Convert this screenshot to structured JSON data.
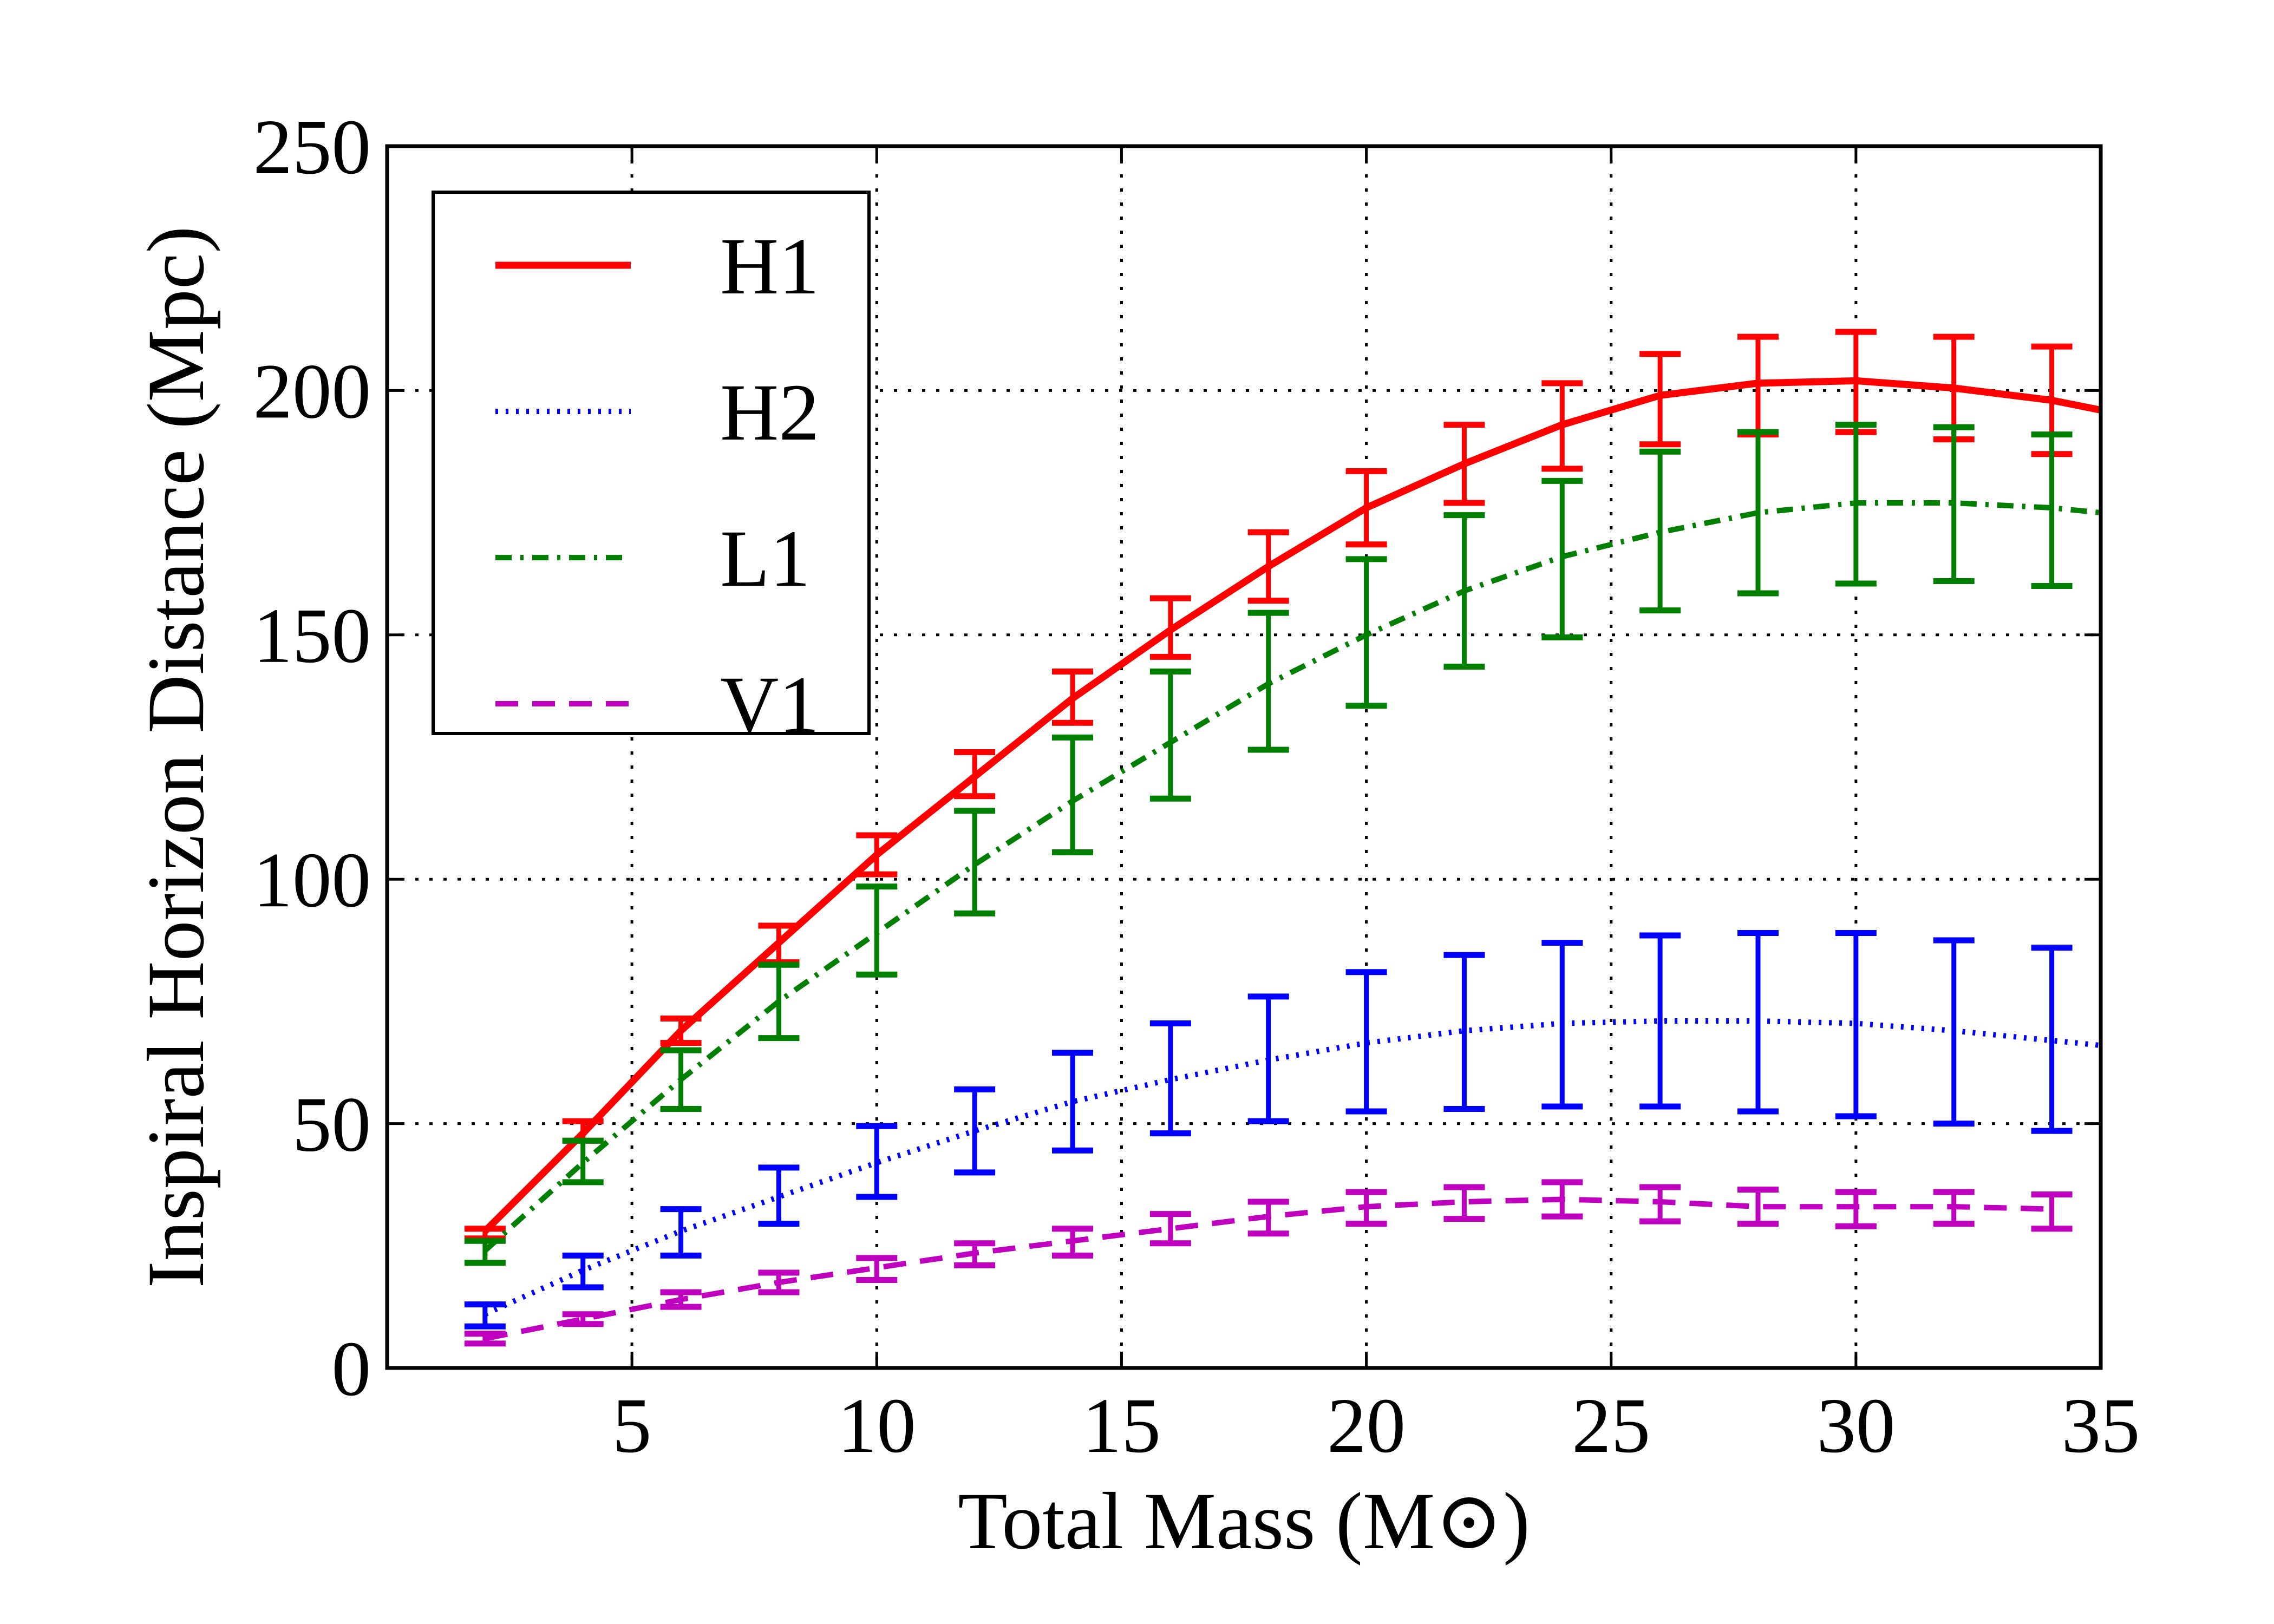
{
  "chart_data": {
    "type": "line",
    "title": "",
    "xlabel": "Total Mass (M⊙)",
    "ylabel": "Inspiral Horizon Distance (Mpc)",
    "xlim": [
      0,
      35
    ],
    "ylim": [
      0,
      250
    ],
    "xticks": [
      5,
      10,
      15,
      20,
      25,
      30,
      35
    ],
    "yticks": [
      0,
      50,
      100,
      150,
      200,
      250
    ],
    "grid": true,
    "legend_position": "top-left",
    "series": [
      {
        "name": "H1",
        "color": "#ff0000",
        "line_style": "solid",
        "x": [
          2,
          4,
          6,
          8,
          10,
          12,
          14,
          16,
          18,
          20,
          22,
          24,
          26,
          28,
          30,
          32,
          34,
          35
        ],
        "y": [
          28,
          48,
          69,
          87,
          105,
          121,
          137,
          151,
          164,
          176,
          185,
          193,
          199,
          201.5,
          202,
          200.5,
          198,
          196
        ],
        "error_x": [
          2,
          4,
          6,
          8,
          10,
          12,
          14,
          16,
          18,
          20,
          22,
          24,
          26,
          28,
          30,
          32,
          34
        ],
        "error_low": [
          26.5,
          46.5,
          66.5,
          83,
          101,
          117,
          132,
          145.5,
          157,
          168.5,
          177,
          184,
          189,
          191,
          191.5,
          190,
          187
        ],
        "error_high": [
          28.5,
          50.5,
          71.5,
          90.5,
          109,
          126,
          142.5,
          157.5,
          171,
          183.5,
          193,
          201.5,
          207.5,
          211,
          212,
          211,
          209
        ]
      },
      {
        "name": "H2",
        "color": "#0000ff",
        "line_style": "dotted",
        "x": [
          2,
          4,
          6,
          8,
          10,
          12,
          14,
          16,
          18,
          20,
          22,
          24,
          26,
          28,
          30,
          32,
          34,
          35
        ],
        "y": [
          11,
          20,
          28,
          35,
          42,
          48.5,
          54.5,
          59,
          63,
          66.5,
          69,
          70.5,
          71,
          71,
          70.5,
          69,
          67,
          66
        ],
        "error_x": [
          2,
          4,
          6,
          8,
          10,
          12,
          14,
          16,
          18,
          20,
          22,
          24,
          26,
          28,
          30,
          32,
          34
        ],
        "error_low": [
          8.5,
          16.5,
          23,
          29.5,
          35,
          40,
          44.5,
          48,
          50.5,
          52.5,
          53,
          53.5,
          53.5,
          52.5,
          51.5,
          50,
          48.5
        ],
        "error_high": [
          13,
          23,
          32.5,
          41,
          49.5,
          57,
          64.5,
          70.5,
          76,
          81,
          84.5,
          87,
          88.5,
          89,
          89,
          87.5,
          86
        ]
      },
      {
        "name": "L1",
        "color": "#007f00",
        "line_style": "dashdot",
        "x": [
          2,
          4,
          6,
          8,
          10,
          12,
          14,
          16,
          18,
          20,
          22,
          24,
          26,
          28,
          30,
          32,
          34,
          35
        ],
        "y": [
          24,
          42,
          59,
          75,
          89,
          103,
          116,
          128,
          140,
          150,
          159,
          166,
          171,
          175,
          177,
          177,
          176,
          175
        ],
        "error_x": [
          2,
          4,
          6,
          8,
          10,
          12,
          14,
          16,
          18,
          20,
          22,
          24,
          26,
          28,
          30,
          32,
          34
        ],
        "error_low": [
          21.5,
          38,
          53,
          67.5,
          80.5,
          93,
          105.5,
          116.5,
          126.5,
          135.5,
          143.5,
          149.5,
          155,
          158.5,
          160.5,
          161,
          160
        ],
        "error_high": [
          26,
          46.5,
          65,
          82.5,
          98.5,
          114,
          129,
          142.5,
          154.5,
          165.5,
          174.5,
          181.5,
          187.5,
          191.5,
          193,
          192.5,
          191
        ]
      },
      {
        "name": "V1",
        "color": "#bf00bf",
        "line_style": "dashed",
        "x": [
          2,
          4,
          6,
          8,
          10,
          12,
          14,
          16,
          18,
          20,
          22,
          24,
          26,
          28,
          30,
          32,
          34
        ],
        "y": [
          6,
          10,
          14,
          17.5,
          20.5,
          23.5,
          26,
          28.5,
          31,
          33,
          34,
          34.5,
          34,
          33,
          33,
          33,
          32.5
        ],
        "error_x": [
          2,
          4,
          6,
          8,
          10,
          12,
          14,
          16,
          18,
          20,
          22,
          24,
          26,
          28,
          30,
          32,
          34
        ],
        "error_low": [
          5,
          9,
          12.5,
          15.5,
          18,
          21,
          23,
          25.5,
          27.5,
          29.5,
          30.5,
          31,
          30,
          29.5,
          29,
          29.5,
          28.5
        ],
        "error_high": [
          7,
          11,
          15.5,
          19.5,
          22.5,
          25.5,
          28.5,
          31.5,
          34,
          36,
          37,
          38,
          37,
          36.5,
          36,
          36,
          35.5
        ]
      }
    ]
  }
}
